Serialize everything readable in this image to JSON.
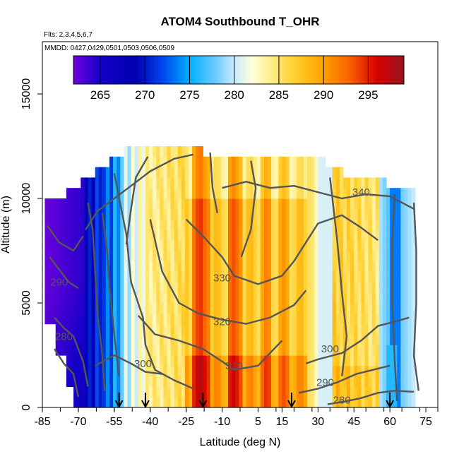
{
  "chart_data": {
    "type": "heatmap",
    "title": "ATOM4 Southbound T_OHR",
    "flights_note": "Flts: 2,3,4,5,6,7",
    "dates_note": "MMDD: 0427,0429,0501,0503,0506,0509",
    "xlabel": "Latitude (deg N)",
    "ylabel": "Altitude (m)",
    "xlim": [
      -85,
      80
    ],
    "ylim": [
      0,
      17500
    ],
    "x_ticks": [
      -85,
      -70,
      -55,
      -40,
      -25,
      -10,
      5,
      15,
      30,
      45,
      60,
      75
    ],
    "y_ticks": [
      0,
      5000,
      10000,
      15000
    ],
    "colorbar": {
      "min": 262,
      "max": 299,
      "ticks": [
        265,
        270,
        275,
        280,
        285,
        290,
        295
      ]
    },
    "contour_labels": [
      {
        "text": "340",
        "lat": 48,
        "alt": 10300
      },
      {
        "text": "330",
        "lat": -10,
        "alt": 6200
      },
      {
        "text": "320",
        "lat": -10,
        "alt": 4100
      },
      {
        "text": "310",
        "lat": -5,
        "alt": 2000
      },
      {
        "text": "300",
        "lat": -43,
        "alt": 2100
      },
      {
        "text": "300",
        "lat": 35,
        "alt": 2800
      },
      {
        "text": "290",
        "lat": -78,
        "alt": 6000
      },
      {
        "text": "290",
        "lat": 33,
        "alt": 1200
      },
      {
        "text": "280",
        "lat": -76,
        "alt": 3400
      },
      {
        "text": "280",
        "lat": 40,
        "alt": 350
      }
    ],
    "profile_markers_lat": [
      -53,
      -42,
      -18,
      19,
      60
    ]
  }
}
